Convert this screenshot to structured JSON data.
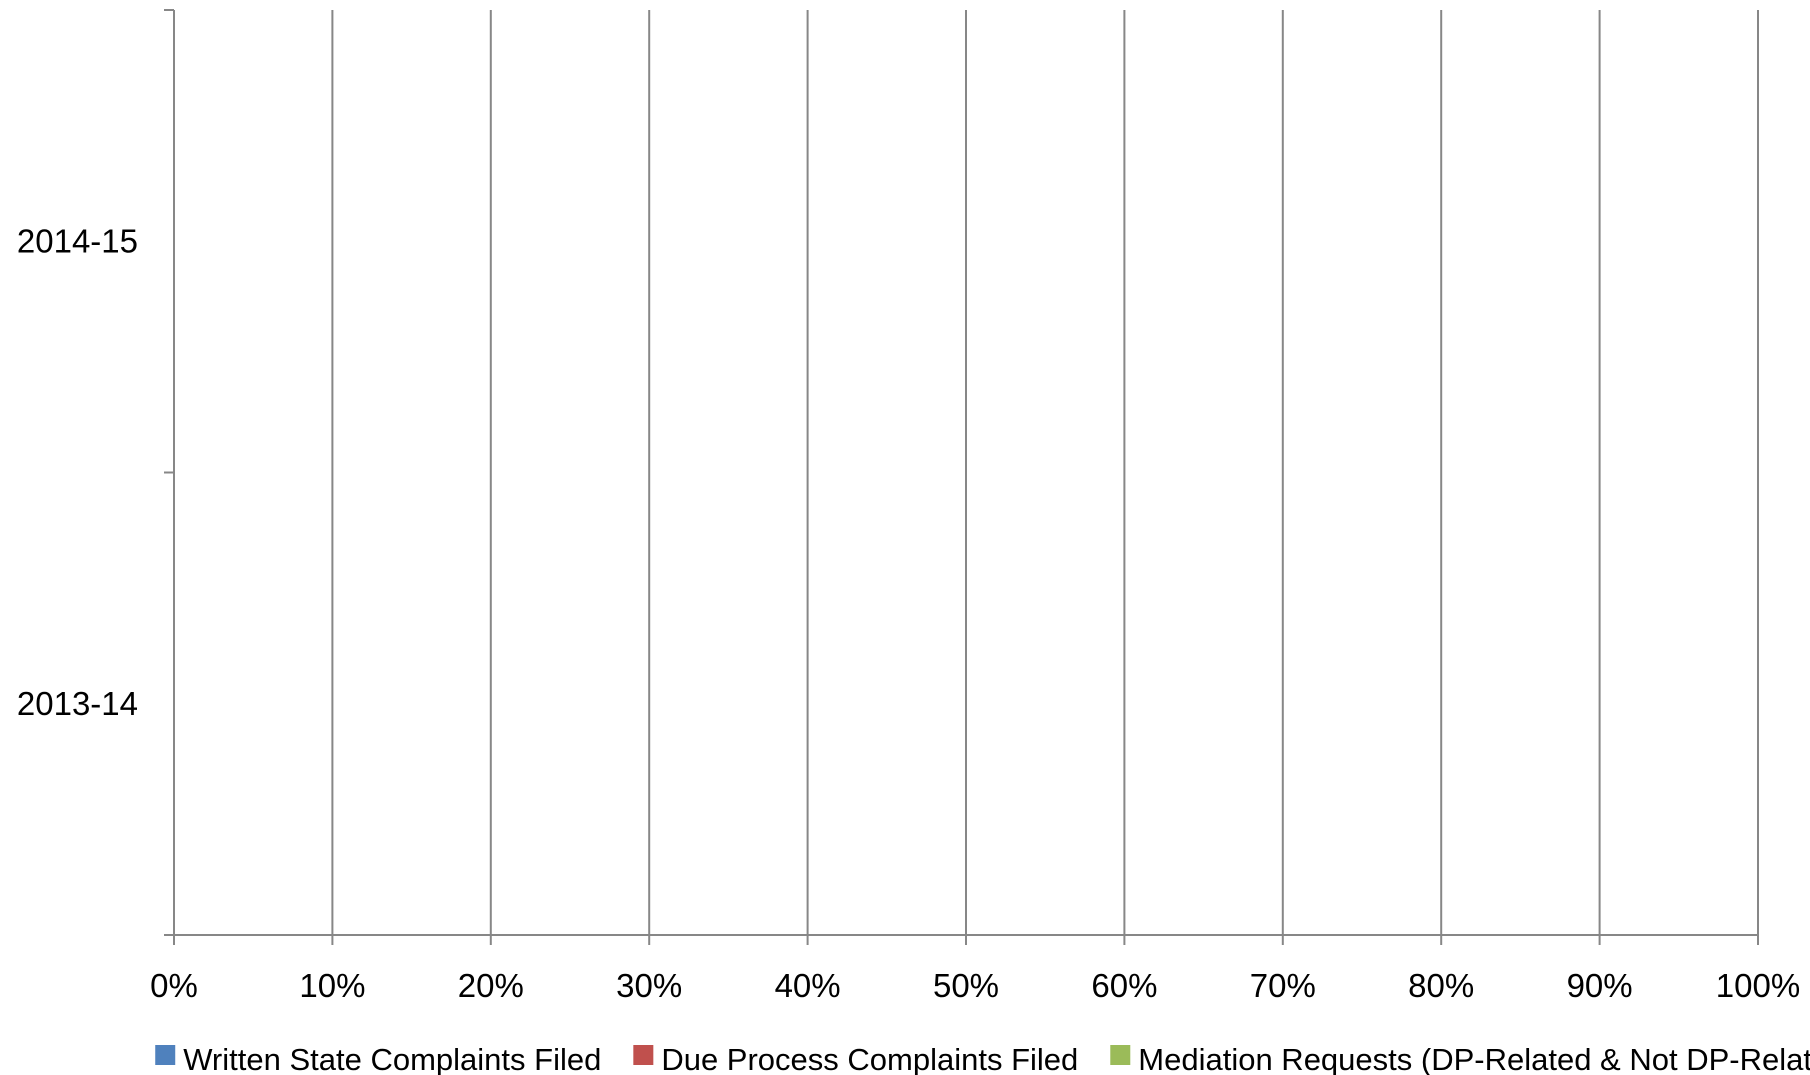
{
  "chart_data": {
    "type": "bar",
    "orientation": "horizontal",
    "stacked": "percent",
    "categories": [
      "2013-14",
      "2014-15"
    ],
    "series": [
      {
        "name": "Written State Complaints Filed",
        "color": "#4f81bd",
        "values": [
          0,
          0
        ]
      },
      {
        "name": "Due Process Complaints Filed",
        "color": "#c0504d",
        "values": [
          0,
          0
        ]
      },
      {
        "name": "Mediation Requests (DP-Related & Not DP-Related)",
        "color": "#9bbb59",
        "values": [
          0,
          0
        ]
      }
    ],
    "x_ticks": [
      "0%",
      "10%",
      "20%",
      "30%",
      "40%",
      "50%",
      "60%",
      "70%",
      "80%",
      "90%",
      "100%"
    ],
    "xlim": [
      0,
      100
    ],
    "title": "",
    "xlabel": "",
    "ylabel": "",
    "grid": "vertical",
    "legend_position": "bottom"
  }
}
